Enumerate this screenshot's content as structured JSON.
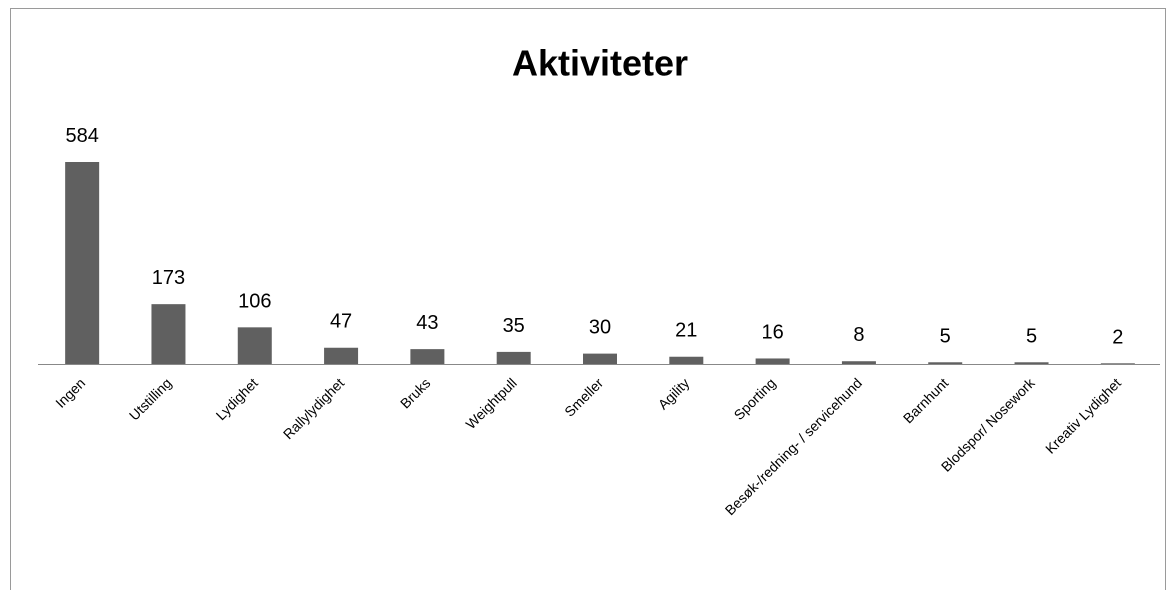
{
  "chart_data": {
    "type": "bar",
    "title": "Aktiviteter",
    "categories": [
      "Ingen",
      "Utstilling",
      "Lydighet",
      "Rallylydighet",
      "Bruks",
      "Weightpull",
      "Smeller",
      "Agility",
      "Sporting",
      "Besøk-/redning- / servicehund",
      "Barnhunt",
      "Blodspor/ Nosework",
      "Kreativ Lydighet"
    ],
    "values": [
      584,
      173,
      106,
      47,
      43,
      35,
      30,
      21,
      16,
      8,
      5,
      5,
      2
    ],
    "color": "#606060"
  }
}
